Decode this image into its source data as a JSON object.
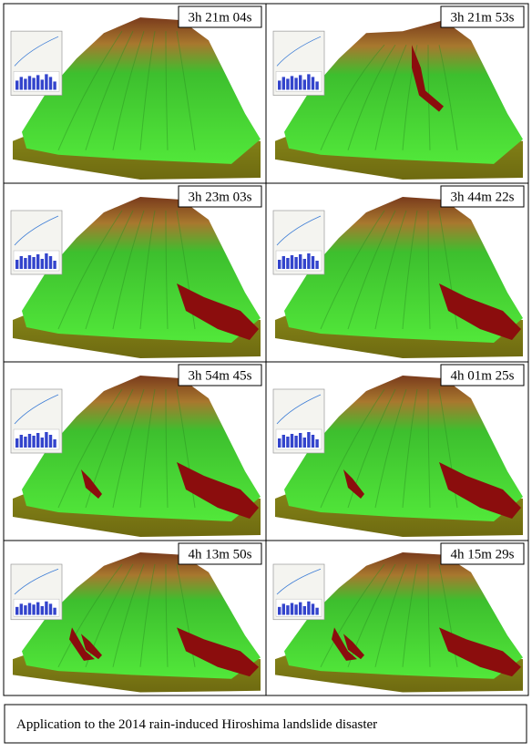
{
  "panels": [
    {
      "time": "3h 21m 04s"
    },
    {
      "time": "3h 21m 53s"
    },
    {
      "time": "3h 23m 03s"
    },
    {
      "time": "3h 44m 22s"
    },
    {
      "time": "3h 54m 45s"
    },
    {
      "time": "4h 01m 25s"
    },
    {
      "time": "4h 13m 50s"
    },
    {
      "time": "4h 15m 29s"
    }
  ],
  "caption": "Application to the 2014 rain-induced Hiroshima landslide disaster"
}
